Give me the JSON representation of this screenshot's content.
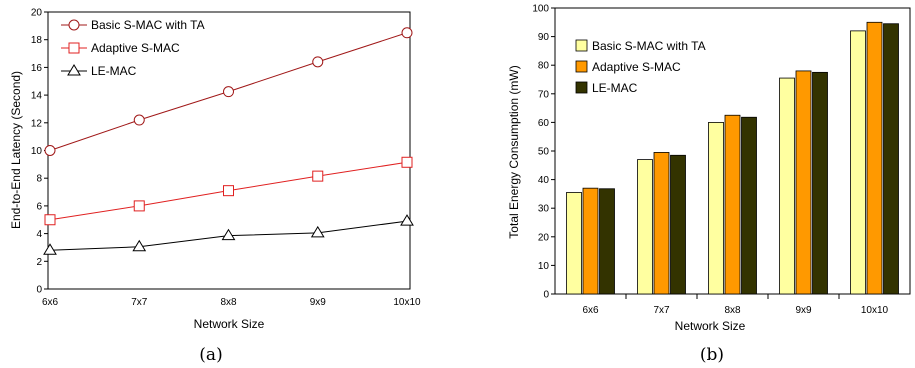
{
  "chart_data": [
    {
      "type": "line",
      "caption": "(a)",
      "categories": [
        "6x6",
        "7x7",
        "8x8",
        "9x9",
        "10x10"
      ],
      "series": [
        {
          "name": "Basic S-MAC with TA",
          "marker": "circle",
          "color": "#a01818",
          "values": [
            10.0,
            12.2,
            14.25,
            16.4,
            18.5
          ]
        },
        {
          "name": "Adaptive S-MAC",
          "marker": "square",
          "color": "#e02020",
          "values": [
            5.0,
            6.0,
            7.1,
            8.15,
            9.15
          ]
        },
        {
          "name": "LE-MAC",
          "marker": "triangle",
          "color": "#000000",
          "values": [
            2.8,
            3.05,
            3.85,
            4.05,
            4.9
          ]
        }
      ],
      "xlabel": "Network Size",
      "ylabel": "End-to-End Latency (Second)",
      "ylim": [
        0,
        20
      ],
      "yticks": [
        "0",
        "2",
        "4",
        "6",
        "8",
        "10",
        "12",
        "14",
        "16",
        "18",
        "20"
      ],
      "grid": false,
      "legend": "top-left"
    },
    {
      "type": "bar",
      "caption": "(b)",
      "categories": [
        "6x6",
        "7x7",
        "8x8",
        "9x9",
        "10x10"
      ],
      "series": [
        {
          "name": "Basic S-MAC with TA",
          "color": "#ffffa0",
          "values": [
            35.5,
            47.0,
            60.0,
            75.5,
            92.0
          ]
        },
        {
          "name": "Adaptive S-MAC",
          "color": "#ff9900",
          "values": [
            37.0,
            49.5,
            62.5,
            78.0,
            95.0
          ]
        },
        {
          "name": "LE-MAC",
          "color": "#333300",
          "values": [
            36.8,
            48.5,
            61.8,
            77.5,
            94.5
          ]
        }
      ],
      "xlabel": "Network Size",
      "ylabel": "Total Energy Consumption (mW)",
      "ylim": [
        0,
        100
      ],
      "yticks": [
        "0",
        "10",
        "20",
        "30",
        "40",
        "50",
        "60",
        "70",
        "80",
        "90",
        "100"
      ],
      "grid": false,
      "legend": "top-left"
    }
  ]
}
